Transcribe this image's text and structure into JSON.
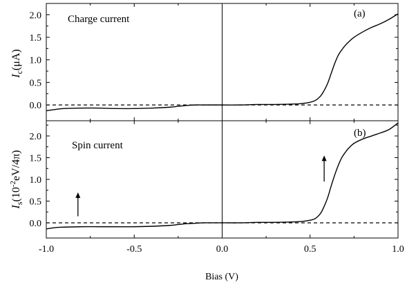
{
  "figure": {
    "x_axis_label": "Bias (V)"
  },
  "chart_data": [
    {
      "type": "line",
      "panel_label": "(a)",
      "annotation": "Charge current",
      "ylabel": {
        "symbol": "I",
        "subscript": "c",
        "unit": "(μA)"
      },
      "xlim": [
        -1.0,
        1.0
      ],
      "ylim": [
        -0.35,
        2.25
      ],
      "yticks": [
        0.0,
        0.5,
        1.0,
        1.5,
        2.0
      ],
      "ytick_labels": [
        "0.0",
        "0.5",
        "1.0",
        "1.5",
        "2.0"
      ],
      "zero_line": "dashed",
      "grid": false,
      "series": [
        {
          "x": [
            -1.0,
            -0.95,
            -0.9,
            -0.8,
            -0.7,
            -0.6,
            -0.5,
            -0.4,
            -0.3,
            -0.25,
            -0.2,
            -0.15,
            -0.1,
            0.0,
            0.1,
            0.2,
            0.3,
            0.4,
            0.45,
            0.5,
            0.53,
            0.56,
            0.58,
            0.6,
            0.62,
            0.64,
            0.66,
            0.68,
            0.7,
            0.72,
            0.75,
            0.8,
            0.85,
            0.9,
            0.95,
            1.0
          ],
          "y": [
            -0.13,
            -0.1,
            -0.08,
            -0.07,
            -0.07,
            -0.08,
            -0.08,
            -0.07,
            -0.05,
            -0.03,
            -0.01,
            0.0,
            0.0,
            0.0,
            0.0,
            0.01,
            0.01,
            0.02,
            0.03,
            0.06,
            0.1,
            0.2,
            0.32,
            0.48,
            0.7,
            0.92,
            1.1,
            1.22,
            1.32,
            1.4,
            1.5,
            1.62,
            1.72,
            1.8,
            1.9,
            2.02
          ]
        }
      ]
    },
    {
      "type": "line",
      "panel_label": "(b)",
      "annotation": "Spin current",
      "ylabel": {
        "symbol": "I",
        "subscript": "s",
        "unit_prefix": "(10",
        "unit_exponent": "-2",
        "unit_suffix": "eV/4π)"
      },
      "xlim": [
        -1.0,
        1.0
      ],
      "ylim": [
        -0.35,
        2.35
      ],
      "yticks": [
        0.0,
        0.5,
        1.0,
        1.5,
        2.0
      ],
      "ytick_labels": [
        "0.0",
        "0.5",
        "1.0",
        "1.5",
        "2.0"
      ],
      "xticks": [
        -1.0,
        -0.5,
        0.0,
        0.5,
        1.0
      ],
      "xtick_labels": [
        "-1.0",
        "-0.5",
        "0.0",
        "0.5",
        "1.0"
      ],
      "zero_line": "dashed",
      "grid": false,
      "arrows": [
        {
          "x": -0.82,
          "y_from": 0.15,
          "y_to": 0.7,
          "direction": "up"
        },
        {
          "x": 0.58,
          "y_from": 0.95,
          "y_to": 1.55,
          "direction": "up"
        }
      ],
      "series": [
        {
          "x": [
            -1.0,
            -0.95,
            -0.9,
            -0.8,
            -0.7,
            -0.6,
            -0.5,
            -0.4,
            -0.3,
            -0.25,
            -0.2,
            -0.15,
            -0.1,
            0.0,
            0.1,
            0.2,
            0.3,
            0.4,
            0.45,
            0.5,
            0.53,
            0.56,
            0.58,
            0.6,
            0.62,
            0.64,
            0.66,
            0.68,
            0.7,
            0.72,
            0.75,
            0.8,
            0.85,
            0.9,
            0.95,
            1.0
          ],
          "y": [
            -0.14,
            -0.11,
            -0.1,
            -0.09,
            -0.09,
            -0.09,
            -0.09,
            -0.08,
            -0.06,
            -0.04,
            -0.02,
            -0.01,
            0.0,
            0.0,
            0.0,
            0.01,
            0.01,
            0.02,
            0.03,
            0.06,
            0.1,
            0.22,
            0.38,
            0.58,
            0.85,
            1.1,
            1.32,
            1.5,
            1.62,
            1.72,
            1.83,
            1.93,
            2.0,
            2.07,
            2.15,
            2.3
          ]
        }
      ]
    }
  ]
}
